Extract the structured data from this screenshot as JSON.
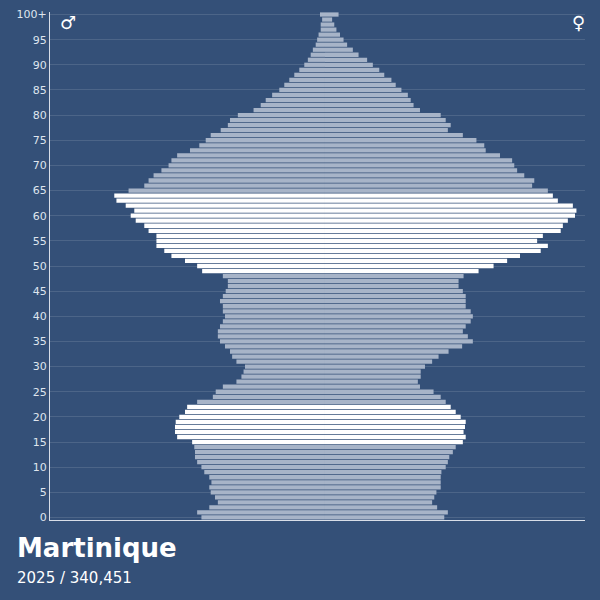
{
  "chart_data": {
    "type": "bar",
    "orientation": "horizontal",
    "title": "Martinique",
    "subtitle": "2025 / 340,451",
    "grid": true,
    "tick_labels": "y",
    "categories": [
      "0",
      null,
      null,
      null,
      null,
      "5",
      null,
      null,
      null,
      null,
      "10",
      null,
      null,
      null,
      null,
      "15",
      null,
      null,
      null,
      null,
      "20",
      null,
      null,
      null,
      null,
      "25",
      null,
      null,
      null,
      null,
      "30",
      null,
      null,
      null,
      null,
      "35",
      null,
      null,
      null,
      null,
      "40",
      null,
      null,
      null,
      null,
      "45",
      null,
      null,
      null,
      null,
      "50",
      null,
      null,
      null,
      null,
      "55",
      null,
      null,
      null,
      null,
      "60",
      null,
      null,
      null,
      null,
      "65",
      null,
      null,
      null,
      null,
      "70",
      null,
      null,
      null,
      null,
      "75",
      null,
      null,
      null,
      null,
      "80",
      null,
      null,
      null,
      null,
      "85",
      null,
      null,
      null,
      null,
      "90",
      null,
      null,
      null,
      null,
      "95",
      null,
      null,
      null,
      null,
      "100+"
    ],
    "series": [
      {
        "name": "♂",
        "side": "left",
        "xlim": [
          0,
          3850
        ],
        "values": [
          1730,
          1790,
          1620,
          1500,
          1540,
          1600,
          1620,
          1590,
          1620,
          1690,
          1730,
          1790,
          1820,
          1820,
          1830,
          1860,
          2070,
          2100,
          2100,
          2090,
          2040,
          1960,
          1930,
          1790,
          1570,
          1530,
          1430,
          1240,
          1170,
          1140,
          1120,
          1240,
          1300,
          1330,
          1400,
          1470,
          1500,
          1500,
          1470,
          1430,
          1400,
          1430,
          1430,
          1470,
          1430,
          1390,
          1360,
          1360,
          1430,
          1720,
          1790,
          1960,
          2150,
          2250,
          2360,
          2360,
          2360,
          2470,
          2530,
          2650,
          2720,
          2670,
          2790,
          2920,
          2950,
          2750,
          2530,
          2470,
          2400,
          2290,
          2190,
          2150,
          2070,
          1890,
          1760,
          1670,
          1600,
          1460,
          1360,
          1330,
          1220,
          1000,
          900,
          830,
          740,
          640,
          570,
          500,
          430,
          360,
          290,
          240,
          200,
          170,
          130,
          110,
          90,
          60,
          60,
          40,
          70
        ],
        "colors": [
          "#a7b4c8",
          "#a7b4c8",
          "#a7b4c8",
          "#a7b4c8",
          "#a7b4c8",
          "#a7b4c8",
          "#a7b4c8",
          "#a7b4c8",
          "#a7b4c8",
          "#a7b4c8",
          "#a7b4c8",
          "#a7b4c8",
          "#a7b4c8",
          "#a7b4c8",
          "#a7b4c8",
          "#ffffff",
          "#ffffff",
          "#ffffff",
          "#ffffff",
          "#ffffff",
          "#ffffff",
          "#ffffff",
          "#ffffff",
          "#a7b4c8",
          "#a7b4c8",
          "#a7b4c8",
          "#a7b4c8",
          "#a7b4c8",
          "#a7b4c8",
          "#a7b4c8",
          "#a7b4c8",
          "#a7b4c8",
          "#a7b4c8",
          "#a7b4c8",
          "#a7b4c8",
          "#a7b4c8",
          "#a7b4c8",
          "#a7b4c8",
          "#a7b4c8",
          "#a7b4c8",
          "#a7b4c8",
          "#a7b4c8",
          "#a7b4c8",
          "#a7b4c8",
          "#a7b4c8",
          "#a7b4c8",
          "#a7b4c8",
          "#a7b4c8",
          "#a7b4c8",
          "#ffffff",
          "#ffffff",
          "#ffffff",
          "#ffffff",
          "#ffffff",
          "#ffffff",
          "#ffffff",
          "#ffffff",
          "#ffffff",
          "#ffffff",
          "#ffffff",
          "#ffffff",
          "#ffffff",
          "#ffffff",
          "#ffffff",
          "#ffffff",
          "#a7b4c8",
          "#a7b4c8",
          "#a7b4c8",
          "#a7b4c8",
          "#a7b4c8",
          "#a7b4c8",
          "#a7b4c8",
          "#a7b4c8",
          "#a7b4c8",
          "#a7b4c8",
          "#a7b4c8",
          "#a7b4c8",
          "#a7b4c8",
          "#a7b4c8",
          "#a7b4c8",
          "#a7b4c8",
          "#a7b4c8",
          "#a7b4c8",
          "#a7b4c8",
          "#a7b4c8",
          "#a7b4c8",
          "#a7b4c8",
          "#a7b4c8",
          "#a7b4c8",
          "#a7b4c8",
          "#a7b4c8",
          "#a7b4c8",
          "#a7b4c8",
          "#a7b4c8",
          "#a7b4c8",
          "#a7b4c8",
          "#a7b4c8",
          "#a7b4c8",
          "#a7b4c8",
          "#a7b4c8",
          "#a7b4c8"
        ]
      },
      {
        "name": "♀",
        "side": "right",
        "xlim": [
          0,
          3640
        ],
        "values": [
          1670,
          1720,
          1570,
          1500,
          1530,
          1560,
          1620,
          1620,
          1620,
          1630,
          1690,
          1720,
          1740,
          1790,
          1830,
          1930,
          1970,
          1940,
          1960,
          1970,
          1900,
          1830,
          1760,
          1690,
          1620,
          1520,
          1330,
          1300,
          1340,
          1340,
          1400,
          1500,
          1590,
          1730,
          1920,
          2070,
          2000,
          1930,
          1970,
          2040,
          2070,
          2040,
          1970,
          1970,
          1970,
          1930,
          1870,
          1870,
          1940,
          2150,
          2360,
          2550,
          2730,
          3020,
          3120,
          2970,
          3050,
          3300,
          3330,
          3400,
          3500,
          3520,
          3470,
          3260,
          3190,
          3120,
          2900,
          2930,
          2790,
          2690,
          2650,
          2620,
          2450,
          2250,
          2230,
          2120,
          1930,
          1720,
          1760,
          1690,
          1620,
          1330,
          1240,
          1200,
          1160,
          1070,
          990,
          930,
          830,
          760,
          670,
          590,
          470,
          390,
          310,
          260,
          210,
          160,
          130,
          100,
          190
        ],
        "colors": [
          "#a7b4c8",
          "#a7b4c8",
          "#a7b4c8",
          "#a7b4c8",
          "#a7b4c8",
          "#a7b4c8",
          "#a7b4c8",
          "#a7b4c8",
          "#a7b4c8",
          "#a7b4c8",
          "#a7b4c8",
          "#a7b4c8",
          "#a7b4c8",
          "#a7b4c8",
          "#a7b4c8",
          "#ffffff",
          "#ffffff",
          "#ffffff",
          "#ffffff",
          "#ffffff",
          "#ffffff",
          "#ffffff",
          "#ffffff",
          "#a7b4c8",
          "#a7b4c8",
          "#a7b4c8",
          "#a7b4c8",
          "#a7b4c8",
          "#a7b4c8",
          "#a7b4c8",
          "#a7b4c8",
          "#a7b4c8",
          "#a7b4c8",
          "#a7b4c8",
          "#a7b4c8",
          "#a7b4c8",
          "#a7b4c8",
          "#a7b4c8",
          "#a7b4c8",
          "#a7b4c8",
          "#a7b4c8",
          "#a7b4c8",
          "#a7b4c8",
          "#a7b4c8",
          "#a7b4c8",
          "#a7b4c8",
          "#a7b4c8",
          "#a7b4c8",
          "#a7b4c8",
          "#ffffff",
          "#ffffff",
          "#ffffff",
          "#ffffff",
          "#ffffff",
          "#ffffff",
          "#ffffff",
          "#ffffff",
          "#ffffff",
          "#ffffff",
          "#ffffff",
          "#ffffff",
          "#ffffff",
          "#ffffff",
          "#ffffff",
          "#ffffff",
          "#a7b4c8",
          "#a7b4c8",
          "#a7b4c8",
          "#a7b4c8",
          "#a7b4c8",
          "#a7b4c8",
          "#a7b4c8",
          "#a7b4c8",
          "#a7b4c8",
          "#a7b4c8",
          "#a7b4c8",
          "#a7b4c8",
          "#a7b4c8",
          "#a7b4c8",
          "#a7b4c8",
          "#a7b4c8",
          "#a7b4c8",
          "#a7b4c8",
          "#a7b4c8",
          "#a7b4c8",
          "#a7b4c8",
          "#a7b4c8",
          "#a7b4c8",
          "#a7b4c8",
          "#a7b4c8",
          "#a7b4c8",
          "#a7b4c8",
          "#a7b4c8",
          "#a7b4c8",
          "#a7b4c8",
          "#a7b4c8",
          "#a7b4c8",
          "#a7b4c8",
          "#a7b4c8",
          "#a7b4c8",
          "#a7b4c8"
        ]
      }
    ]
  }
}
